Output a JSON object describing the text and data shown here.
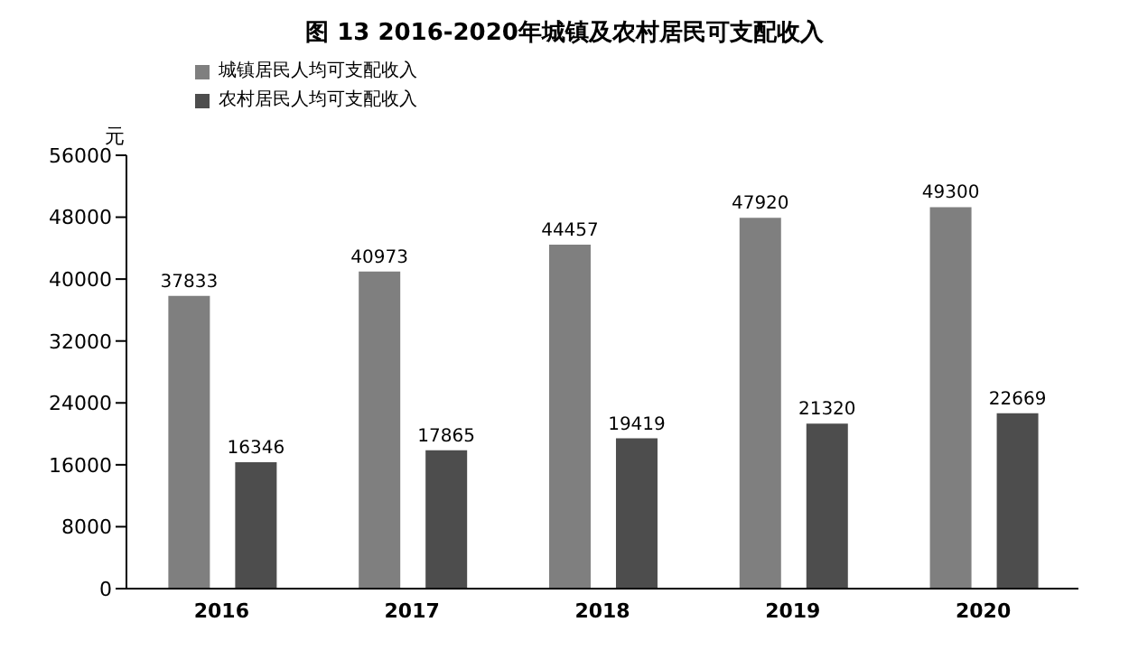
{
  "chart_data": {
    "type": "bar",
    "title": "图 13    2016-2020年城镇及农村居民可支配收入",
    "ylabel": "元",
    "categories": [
      "2016",
      "2017",
      "2018",
      "2019",
      "2020"
    ],
    "series": [
      {
        "name": "城镇居民人均可支配收入",
        "color": "#7f7f7f",
        "values": [
          37833,
          40973,
          44457,
          47920,
          49300
        ]
      },
      {
        "name": "农村居民人均可支配收入",
        "color": "#4d4d4d",
        "values": [
          16346,
          17865,
          19419,
          21320,
          22669
        ]
      }
    ],
    "ylim": [
      0,
      56000
    ],
    "yticks": [
      0,
      8000,
      16000,
      24000,
      32000,
      40000,
      48000,
      56000
    ],
    "data_labels": true,
    "legend": "top left",
    "grid": false
  }
}
